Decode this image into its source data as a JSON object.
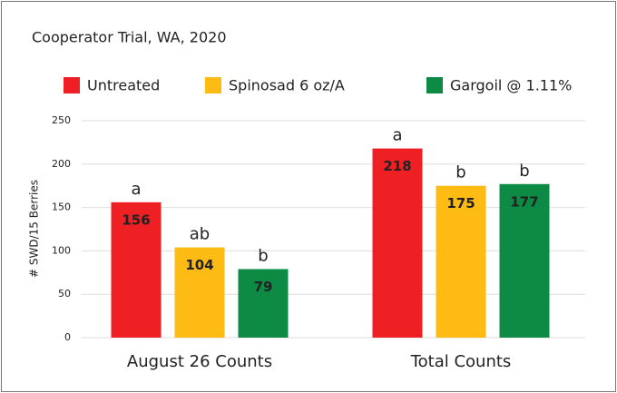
{
  "chart_data": {
    "type": "bar",
    "title": "Cooperator Trial, WA, 2020",
    "y_label": "# SWD/15 Berries",
    "categories": [
      "August 26 Counts",
      "Total Counts"
    ],
    "series": [
      {
        "name": "Untreated",
        "color": "#ee2024",
        "values": [
          156,
          218
        ],
        "letters": [
          "a",
          "a"
        ]
      },
      {
        "name": "Spinosad 6 oz/A",
        "color": "#fdbb14",
        "values": [
          104,
          175
        ],
        "letters": [
          "ab",
          "b"
        ]
      },
      {
        "name": "Gargoil @ 1.11%",
        "color": "#0d8a43",
        "values": [
          79,
          177
        ],
        "letters": [
          "b",
          "b"
        ]
      }
    ],
    "ylim": [
      0,
      250
    ],
    "yticks": [
      0,
      50,
      100,
      150,
      200,
      250
    ],
    "grid": true
  }
}
